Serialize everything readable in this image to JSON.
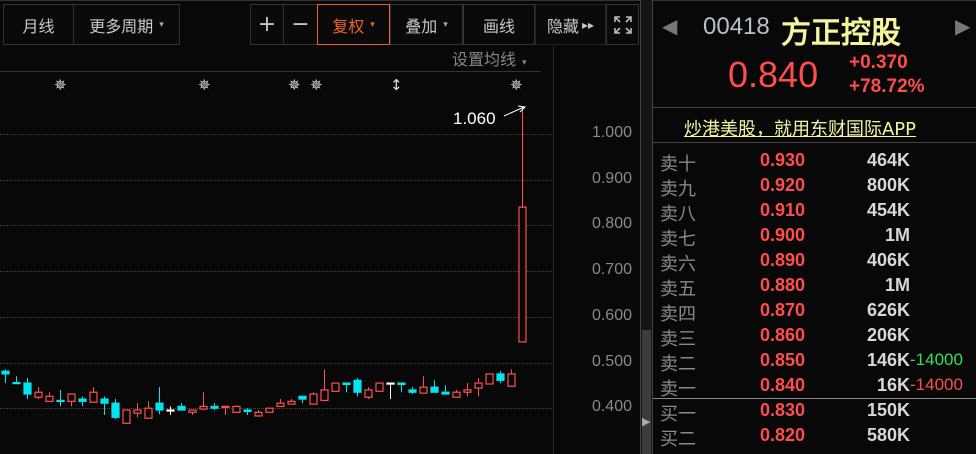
{
  "toolbar": {
    "month_line": "月线",
    "more_periods": "更多周期",
    "zoom_in": "+",
    "zoom_out": "−",
    "adjust": "复权",
    "overlay": "叠加",
    "draw": "画线",
    "hide": "隐藏",
    "hide_arrows": "▸▸",
    "fullscreen_icon": "fullscreen-icon",
    "dropdown_icon": "▾",
    "accent_color": "#f0641e"
  },
  "chart_header": {
    "ma_settings": "设置均线"
  },
  "event_markers": [
    "✵",
    "✵",
    "✵",
    "✵",
    "↕",
    "✵"
  ],
  "chart_data": {
    "type": "candlestick",
    "ylim": [
      0.38,
      1.08
    ],
    "y_ticks": [
      "1.000",
      "0.900",
      "0.800",
      "0.700",
      "0.600",
      "0.500",
      "0.400"
    ],
    "y_tick_values": [
      1.0,
      0.9,
      0.8,
      0.7,
      0.6,
      0.5,
      0.4
    ],
    "grid": true,
    "up_color": "#ff5050",
    "down_color": "#00e5ee",
    "flat_color": "#ffffff",
    "max_annotation": "1.060",
    "candles": [
      [
        0.481,
        0.475,
        0.485,
        0.455
      ],
      [
        0.456,
        0.455,
        0.47,
        0.455
      ],
      [
        0.455,
        0.431,
        0.466,
        0.42
      ],
      [
        0.424,
        0.435,
        0.446,
        0.42
      ],
      [
        0.415,
        0.426,
        0.435,
        0.415
      ],
      [
        0.417,
        0.415,
        0.44,
        0.404
      ],
      [
        0.415,
        0.431,
        0.431,
        0.404
      ],
      [
        0.42,
        0.415,
        0.426,
        0.404
      ],
      [
        0.413,
        0.435,
        0.446,
        0.413
      ],
      [
        0.42,
        0.411,
        0.426,
        0.385
      ],
      [
        0.411,
        0.38,
        0.42,
        0.376
      ],
      [
        0.367,
        0.396,
        0.396,
        0.367
      ],
      [
        0.389,
        0.396,
        0.411,
        0.38
      ],
      [
        0.378,
        0.4,
        0.415,
        0.378
      ],
      [
        0.411,
        0.396,
        0.446,
        0.387
      ],
      [
        0.396,
        0.396,
        0.404,
        0.385
      ],
      [
        0.404,
        0.396,
        0.411,
        0.396
      ],
      [
        0.391,
        0.396,
        0.396,
        0.385
      ],
      [
        0.398,
        0.404,
        0.435,
        0.396
      ],
      [
        0.404,
        0.4,
        0.411,
        0.396
      ],
      [
        0.402,
        0.404,
        0.404,
        0.385
      ],
      [
        0.391,
        0.404,
        0.404,
        0.391
      ],
      [
        0.396,
        0.393,
        0.4,
        0.385
      ],
      [
        0.383,
        0.391,
        0.396,
        0.383
      ],
      [
        0.391,
        0.4,
        0.4,
        0.391
      ],
      [
        0.404,
        0.411,
        0.42,
        0.404
      ],
      [
        0.409,
        0.415,
        0.42,
        0.409
      ],
      [
        0.426,
        0.42,
        0.426,
        0.411
      ],
      [
        0.409,
        0.431,
        0.435,
        0.409
      ],
      [
        0.417,
        0.44,
        0.485,
        0.417
      ],
      [
        0.437,
        0.455,
        0.455,
        0.437
      ],
      [
        0.455,
        0.452,
        0.455,
        0.435
      ],
      [
        0.461,
        0.435,
        0.466,
        0.426
      ],
      [
        0.424,
        0.44,
        0.446,
        0.42
      ],
      [
        0.437,
        0.455,
        0.455,
        0.437
      ],
      [
        0.455,
        0.455,
        0.455,
        0.42
      ],
      [
        0.455,
        0.452,
        0.455,
        0.435
      ],
      [
        0.44,
        0.435,
        0.446,
        0.431
      ],
      [
        0.433,
        0.446,
        0.47,
        0.433
      ],
      [
        0.446,
        0.435,
        0.461,
        0.435
      ],
      [
        0.435,
        0.431,
        0.45,
        0.431
      ],
      [
        0.424,
        0.435,
        0.44,
        0.424
      ],
      [
        0.435,
        0.44,
        0.455,
        0.426
      ],
      [
        0.444,
        0.455,
        0.466,
        0.426
      ],
      [
        0.453,
        0.475,
        0.475,
        0.453
      ],
      [
        0.475,
        0.461,
        0.481,
        0.455
      ],
      [
        0.448,
        0.475,
        0.485,
        0.448
      ],
      [
        0.545,
        0.84,
        1.06,
        0.545
      ]
    ]
  },
  "quote": {
    "code": "00418",
    "name": "方正控股",
    "price": "0.840",
    "change": "+0.370",
    "change_pct": "+78.72%",
    "promo_link": "炒港美股，就用东财国际APP",
    "prev_icon": "◀",
    "next_icon": "▶"
  },
  "order_book": {
    "asks": [
      {
        "label": "卖十",
        "price": "0.930",
        "volume": "464K"
      },
      {
        "label": "卖九",
        "price": "0.920",
        "volume": "800K"
      },
      {
        "label": "卖八",
        "price": "0.910",
        "volume": "454K"
      },
      {
        "label": "卖七",
        "price": "0.900",
        "volume": "1M"
      },
      {
        "label": "卖六",
        "price": "0.890",
        "volume": "406K"
      },
      {
        "label": "卖五",
        "price": "0.880",
        "volume": "1M"
      },
      {
        "label": "卖四",
        "price": "0.870",
        "volume": "626K"
      },
      {
        "label": "卖三",
        "price": "0.860",
        "volume": "206K"
      },
      {
        "label": "卖二",
        "price": "0.850",
        "volume": "146K",
        "change": "-14000",
        "change_color": "#2ee05a"
      },
      {
        "label": "卖一",
        "price": "0.840",
        "volume": "16K",
        "change": "-14000",
        "change_color": "#ff4d4d"
      }
    ],
    "bids": [
      {
        "label": "买一",
        "price": "0.830",
        "volume": "150K"
      },
      {
        "label": "买二",
        "price": "0.820",
        "volume": "580K"
      }
    ]
  }
}
